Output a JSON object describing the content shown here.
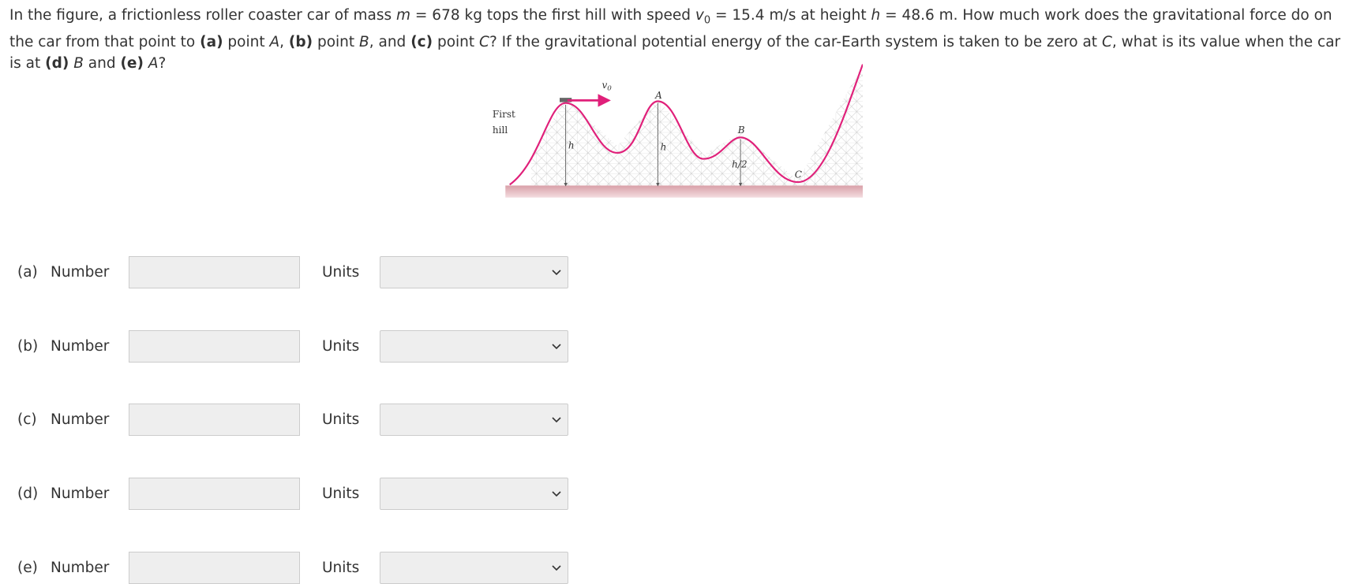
{
  "question": {
    "segments": [
      "In the figure, a frictionless roller coaster car of mass ",
      "m",
      " = 678 kg tops the first hill with speed ",
      "v",
      "0",
      " = 15.4 m/s at height ",
      "h",
      " = 48.6 m. How much work does the gravitational force do on the car from that point to ",
      "(a)",
      " point ",
      "A",
      ", ",
      "(b)",
      " point ",
      "B",
      ", and ",
      "(c)",
      " point ",
      "C",
      "? If the gravitational potential energy of the car-Earth system is taken to be zero at ",
      "C",
      ", what is its value when the car is at ",
      "(d)",
      " ",
      "B",
      " and ",
      "(e)",
      " ",
      "A",
      "?"
    ]
  },
  "figure": {
    "labels": {
      "first": "First",
      "hill": "hill",
      "h1": "h",
      "h2": "h",
      "a": "A",
      "b": "B",
      "half": "h/2",
      "c": "C",
      "v": "v",
      "v_sub": "0"
    }
  },
  "rows": [
    {
      "part": "(a)",
      "number": "Number",
      "units": "Units"
    },
    {
      "part": "(b)",
      "number": "Number",
      "units": "Units"
    },
    {
      "part": "(c)",
      "number": "Number",
      "units": "Units"
    },
    {
      "part": "(d)",
      "number": "Number",
      "units": "Units"
    },
    {
      "part": "(e)",
      "number": "Number",
      "units": "Units"
    }
  ]
}
